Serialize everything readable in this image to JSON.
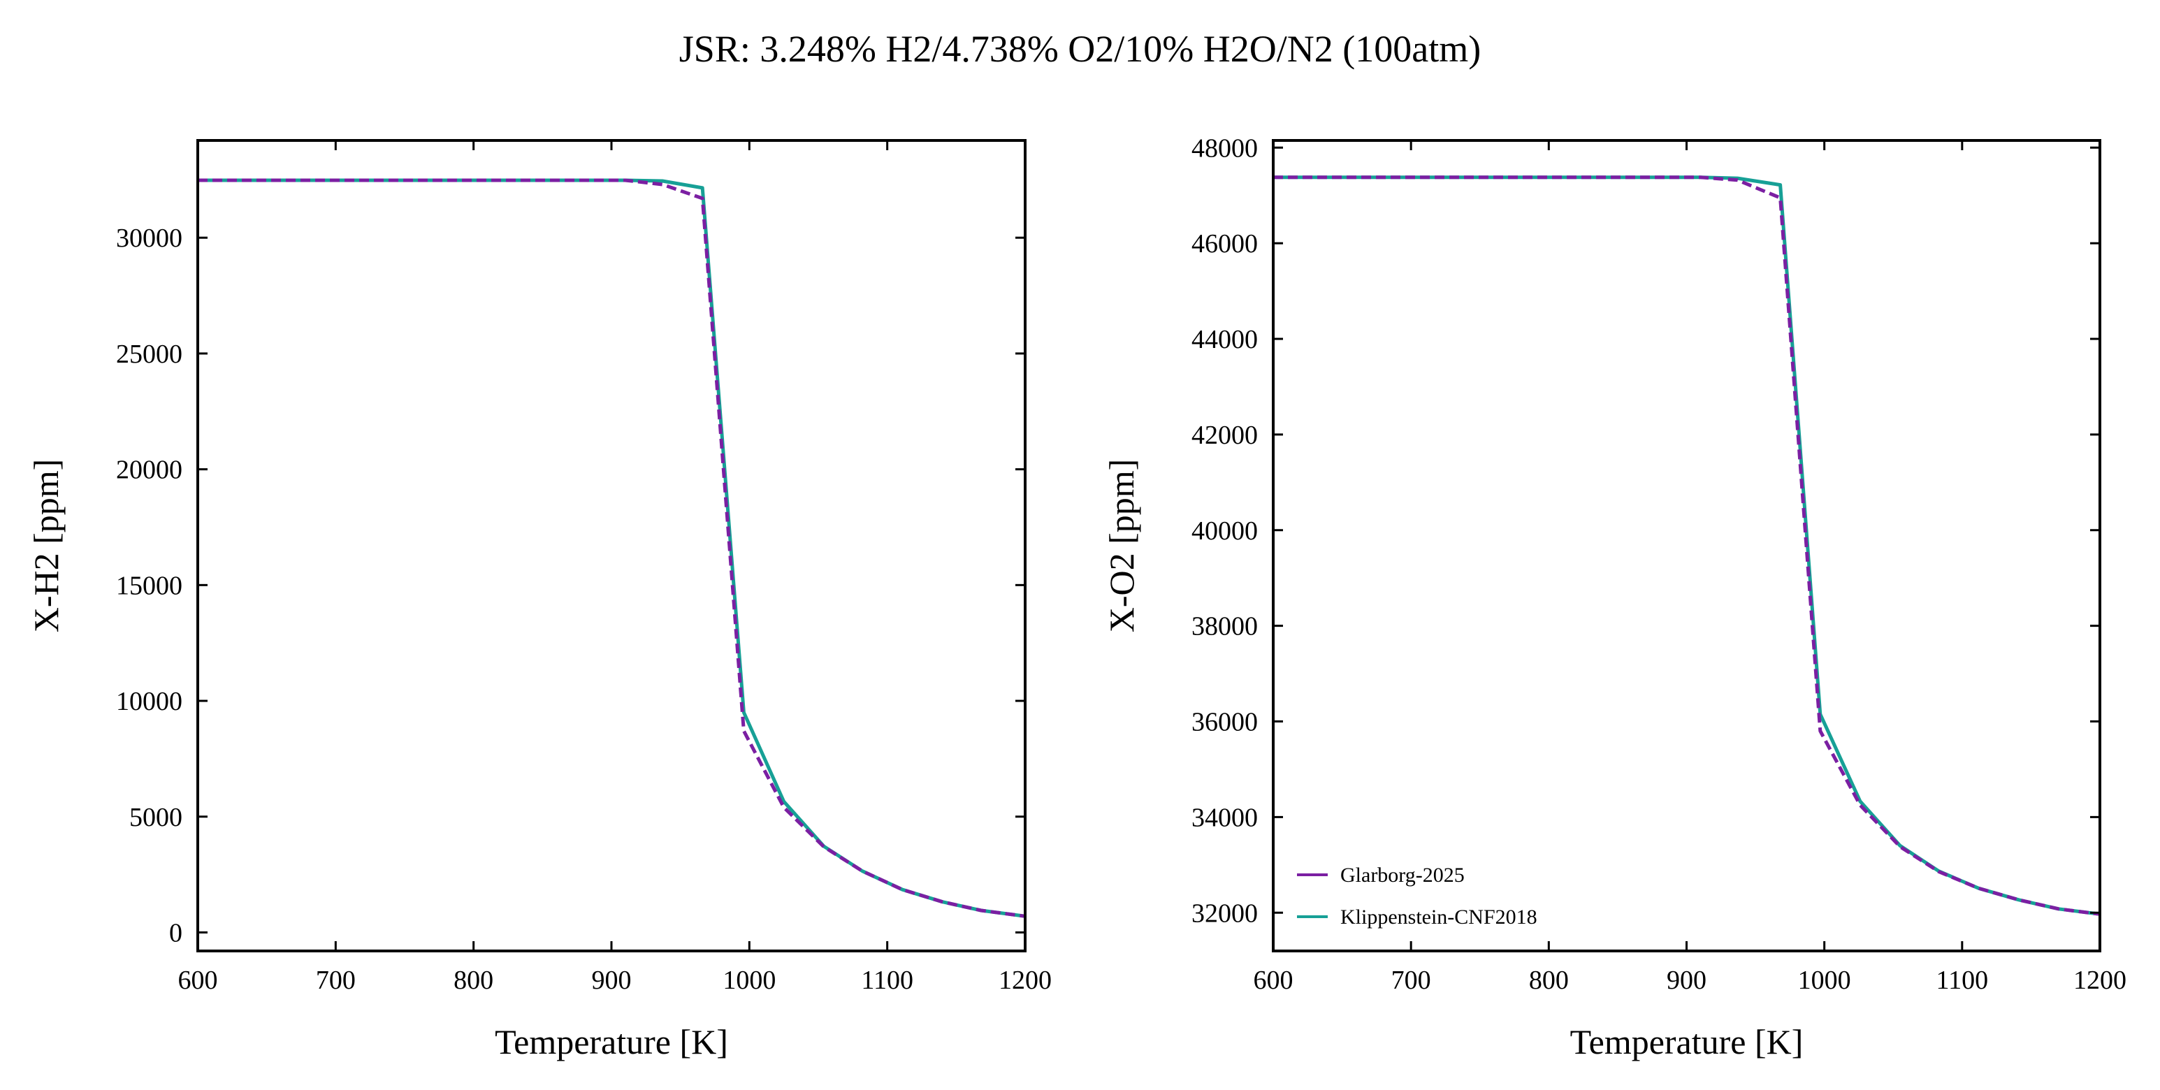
{
  "title": "JSR: 3.248% H2/4.738% O2/10% H2O/N2 (100atm)",
  "colors": {
    "glarborg": "#7b1fa2",
    "klippenstein": "#17a096"
  },
  "chart_data": [
    {
      "type": "line",
      "xlabel": "Temperature [K]",
      "ylabel": "X-H2 [ppm]",
      "xlim": [
        600,
        1200
      ],
      "ylim": [
        -800,
        34200
      ],
      "xticks": [
        600,
        700,
        800,
        900,
        1000,
        1100,
        1200
      ],
      "yticks": [
        0,
        5000,
        10000,
        15000,
        20000,
        25000,
        30000
      ],
      "legend": null,
      "series": [
        {
          "name": "Glarborg-2025",
          "style": "dashed",
          "color": "#7b1fa2",
          "x": [
            600,
            650,
            700,
            750,
            800,
            850,
            900,
            910,
            937,
            966,
            996,
            1025,
            1054,
            1082,
            1111,
            1140,
            1168,
            1200
          ],
          "y": [
            32480,
            32480,
            32480,
            32480,
            32480,
            32480,
            32480,
            32480,
            32300,
            31700,
            8700,
            5400,
            3700,
            2650,
            1850,
            1320,
            950,
            700
          ]
        },
        {
          "name": "Klippenstein-CNF2018",
          "style": "solid",
          "color": "#17a096",
          "x": [
            600,
            650,
            700,
            750,
            800,
            850,
            900,
            910,
            937,
            966,
            996,
            1025,
            1054,
            1082,
            1111,
            1140,
            1168,
            1200
          ],
          "y": [
            32480,
            32480,
            32480,
            32480,
            32480,
            32480,
            32480,
            32480,
            32450,
            32150,
            9500,
            5650,
            3720,
            2650,
            1850,
            1320,
            950,
            700
          ]
        }
      ]
    },
    {
      "type": "line",
      "xlabel": "Temperature [K]",
      "ylabel": "X-O2 [ppm]",
      "xlim": [
        600,
        1200
      ],
      "ylim": [
        31200,
        48150
      ],
      "xticks": [
        600,
        700,
        800,
        900,
        1000,
        1100,
        1200
      ],
      "yticks": [
        32000,
        34000,
        36000,
        38000,
        40000,
        42000,
        44000,
        46000,
        48000
      ],
      "legend": "lower-left",
      "series": [
        {
          "name": "Glarborg-2025",
          "style": "dashed",
          "color": "#7b1fa2",
          "x": [
            600,
            650,
            700,
            750,
            800,
            850,
            900,
            910,
            937,
            968,
            997,
            1026,
            1055,
            1083,
            1112,
            1141,
            1170,
            1200
          ],
          "y": [
            47380,
            47380,
            47380,
            47380,
            47380,
            47380,
            47380,
            47380,
            47320,
            46950,
            35800,
            34250,
            33380,
            32860,
            32510,
            32270,
            32080,
            31970
          ]
        },
        {
          "name": "Klippenstein-CNF2018",
          "style": "solid",
          "color": "#17a096",
          "x": [
            600,
            650,
            700,
            750,
            800,
            850,
            900,
            910,
            937,
            968,
            997,
            1026,
            1055,
            1083,
            1112,
            1141,
            1170,
            1200
          ],
          "y": [
            47380,
            47380,
            47380,
            47380,
            47380,
            47380,
            47380,
            47380,
            47360,
            47220,
            36150,
            34330,
            33400,
            32870,
            32510,
            32270,
            32080,
            31970
          ]
        }
      ]
    }
  ]
}
